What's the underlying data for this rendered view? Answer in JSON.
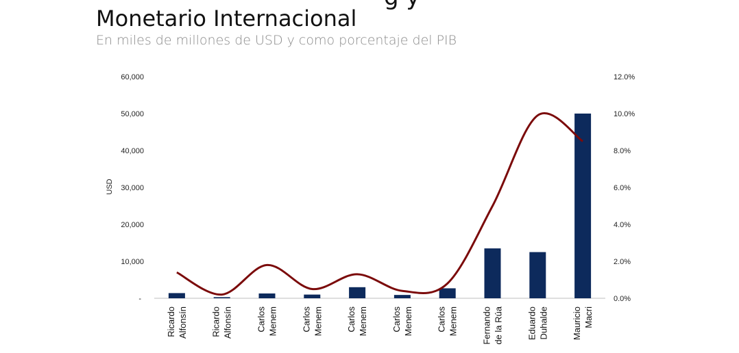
{
  "title_line1": "Monetario Internacional",
  "title_partial": "g  y",
  "subtitle": "En miles de millones de USD y como porcentaje del PIB",
  "chart_data": {
    "type": "bar",
    "ylabel": "USD",
    "ylim": [
      0,
      60000
    ],
    "y2lim": [
      0,
      12
    ],
    "y_ticks": [
      "-",
      "10,000",
      "20,000",
      "30,000",
      "40,000",
      "50,000",
      "60,000"
    ],
    "y2_ticks": [
      "0.0%",
      "2.0%",
      "4.0%",
      "6.0%",
      "8.0%",
      "10.0%",
      "12.0%"
    ],
    "categories": [
      [
        "Ricardo",
        "Alfonsín"
      ],
      [
        "Ricardo",
        "Alfonsín"
      ],
      [
        "Carlos",
        "Menem"
      ],
      [
        "Carlos",
        "Menem"
      ],
      [
        "Carlos",
        "Menem"
      ],
      [
        "Carlos",
        "Menem"
      ],
      [
        "Carlos",
        "Menem"
      ],
      [
        "Fernando",
        "de la Rúa"
      ],
      [
        "Eduardo",
        "Duhalde"
      ],
      [
        "Mauricio",
        "Macri"
      ]
    ],
    "series": [
      {
        "values": [
          1400,
          300,
          1300,
          1000,
          3000,
          900,
          2700,
          13500,
          12500,
          50000
        ],
        "axis": "left",
        "color": "#0d2a5c"
      },
      {
        "values": [
          1.4,
          0.2,
          1.8,
          0.5,
          1.3,
          0.4,
          0.8,
          5.0,
          9.9,
          8.5
        ],
        "axis": "right",
        "color": "#7b0a0a"
      }
    ],
    "grid": false
  }
}
